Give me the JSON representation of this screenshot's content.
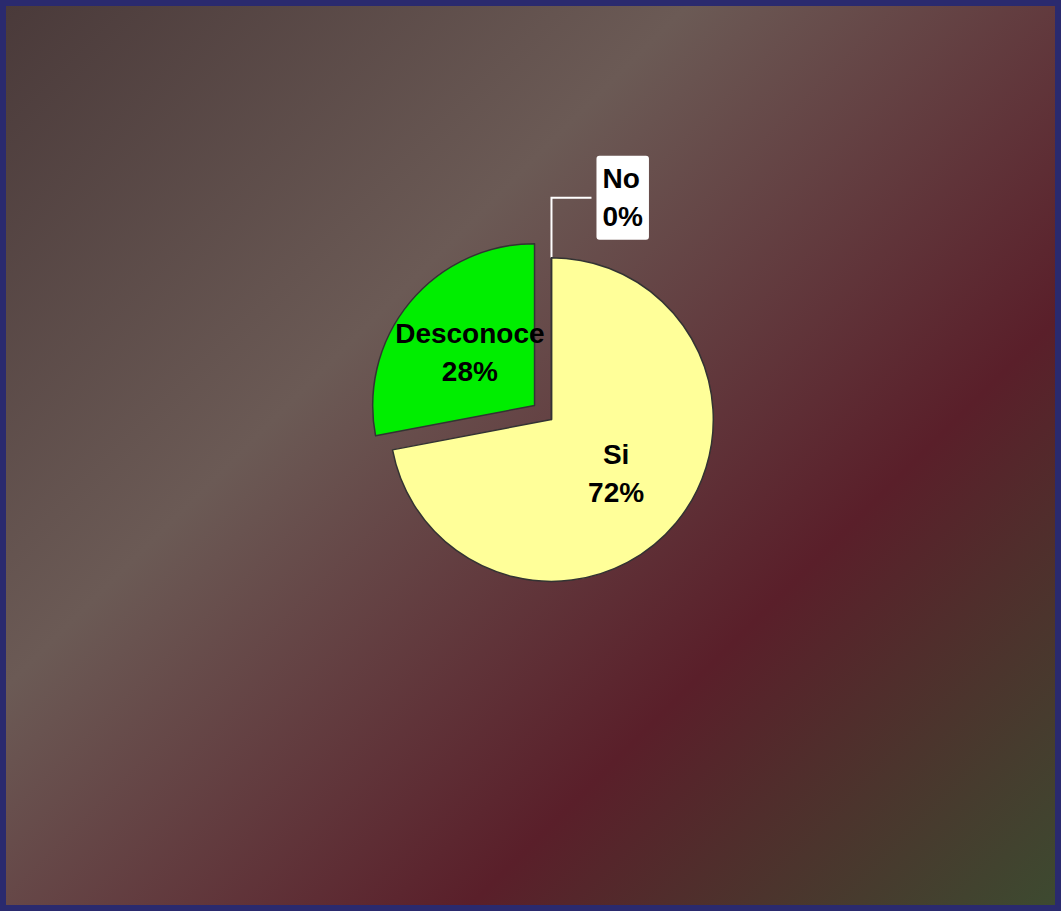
{
  "chart_data": {
    "type": "pie",
    "categories": [
      "Si",
      "Desconoce",
      "No"
    ],
    "values": [
      72,
      28,
      0
    ],
    "value_labels": [
      "72%",
      "28%",
      "0%"
    ],
    "colors": [
      "#ffff99",
      "#00ee00",
      "#800000"
    ],
    "data_labels": true
  }
}
